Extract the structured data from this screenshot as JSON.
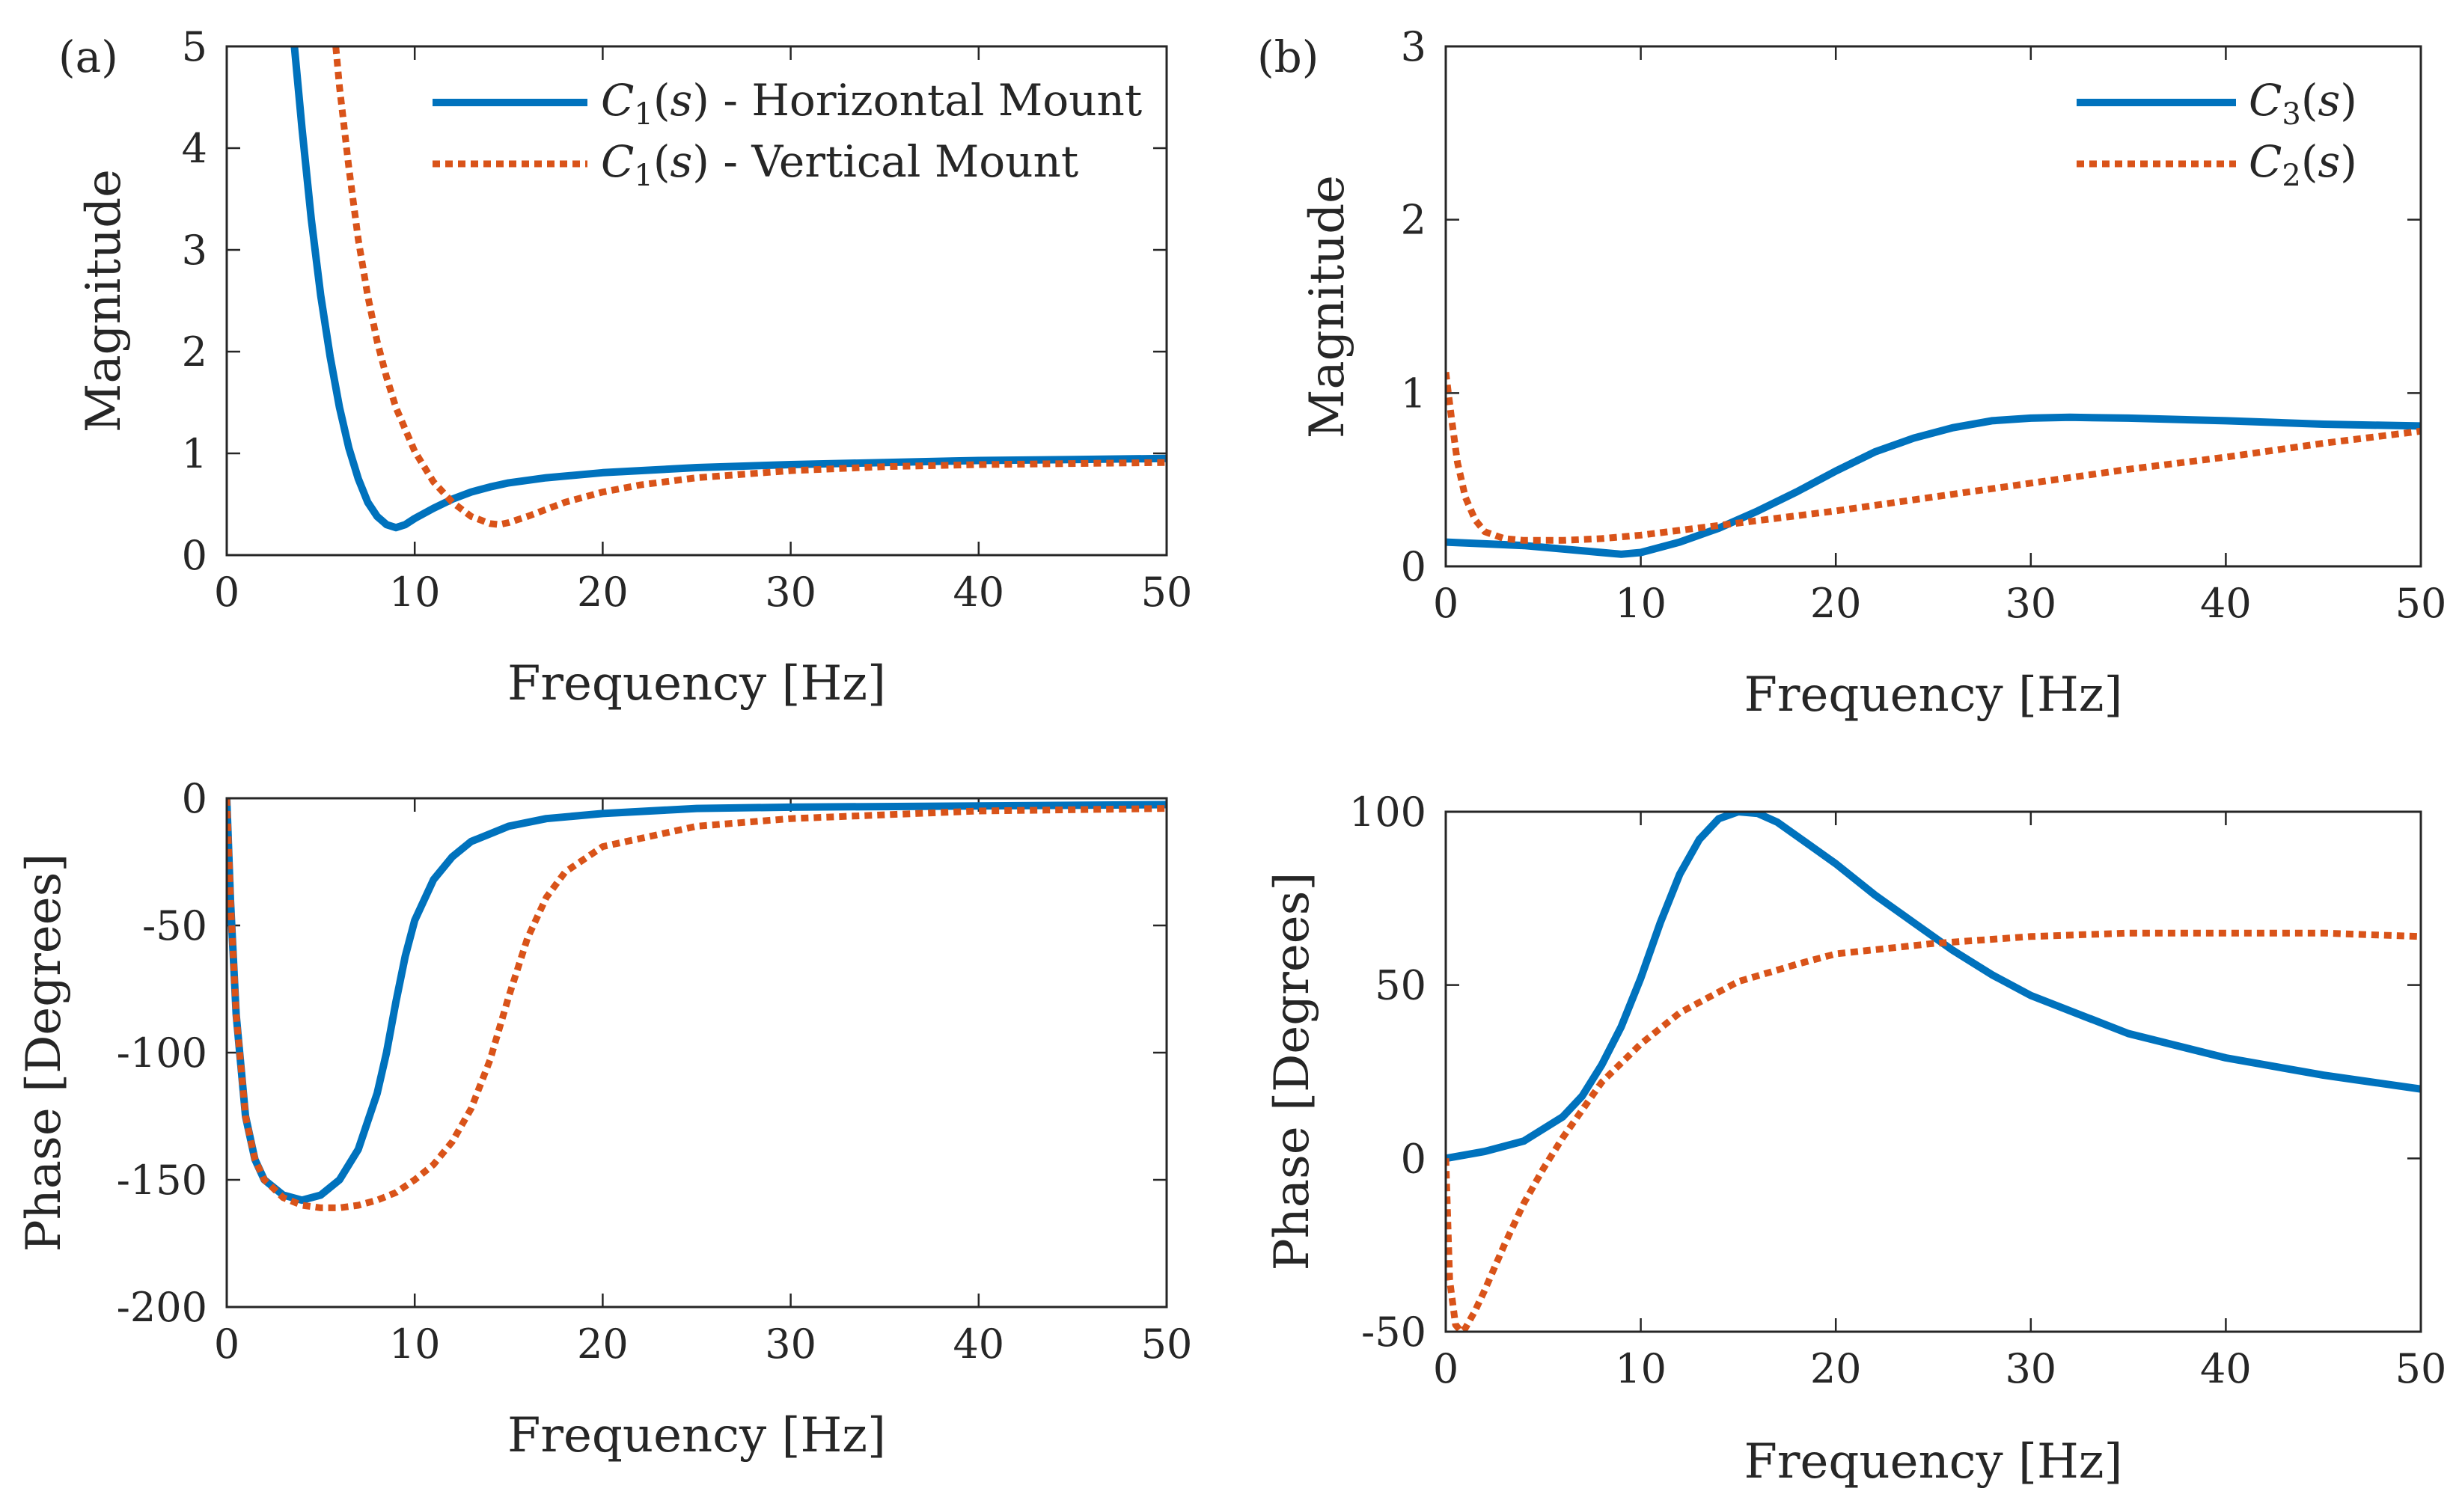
{
  "colors": {
    "blue": "#0072BD",
    "orange": "#D95319",
    "axis": "#262626"
  },
  "chart_data": [
    {
      "id": "a_mag",
      "type": "line",
      "panel_label": "(a)",
      "xlabel": "Frequency [Hz]",
      "ylabel": "Magnitude",
      "xlim": [
        0,
        50
      ],
      "ylim": [
        0,
        5
      ],
      "xticks": [
        0,
        10,
        20,
        30,
        40,
        50
      ],
      "yticks": [
        0,
        1,
        2,
        3,
        4,
        5
      ],
      "legend_position": "top-right",
      "series": [
        {
          "name": "C1(s) - Horizontal Mount",
          "legend": {
            "sym": "C",
            "sub": "1",
            "arg": "(s)",
            "rest": " - Horizontal Mount"
          },
          "color": "#0072BD",
          "style": "solid",
          "x": [
            3.6,
            4.0,
            4.5,
            5.0,
            5.5,
            6.0,
            6.5,
            7.0,
            7.5,
            8.0,
            8.5,
            9.0,
            9.5,
            10.0,
            11.0,
            12.0,
            13.0,
            14.0,
            15.0,
            17.0,
            20.0,
            25.0,
            30.0,
            35.0,
            40.0,
            45.0,
            50.0
          ],
          "y": [
            5.0,
            4.2,
            3.3,
            2.55,
            1.95,
            1.45,
            1.05,
            0.75,
            0.52,
            0.38,
            0.3,
            0.27,
            0.3,
            0.36,
            0.46,
            0.55,
            0.62,
            0.67,
            0.71,
            0.76,
            0.81,
            0.86,
            0.89,
            0.91,
            0.93,
            0.94,
            0.95
          ]
        },
        {
          "name": "C1(s) - Vertical Mount",
          "legend": {
            "sym": "C",
            "sub": "1",
            "arg": "(s)",
            "rest": " - Vertical Mount"
          },
          "color": "#D95319",
          "style": "dotted",
          "x": [
            5.8,
            6.0,
            6.5,
            7.0,
            7.5,
            8.0,
            8.5,
            9.0,
            10.0,
            11.0,
            12.0,
            13.0,
            14.0,
            14.5,
            15.0,
            16.0,
            17.0,
            18.0,
            20.0,
            22.0,
            25.0,
            30.0,
            35.0,
            40.0,
            45.0,
            50.0
          ],
          "y": [
            5.0,
            4.6,
            3.8,
            3.1,
            2.55,
            2.1,
            1.75,
            1.45,
            1.02,
            0.72,
            0.52,
            0.38,
            0.31,
            0.3,
            0.32,
            0.38,
            0.45,
            0.52,
            0.62,
            0.69,
            0.76,
            0.83,
            0.87,
            0.89,
            0.9,
            0.91
          ]
        }
      ]
    },
    {
      "id": "a_phase",
      "type": "line",
      "xlabel": "Frequency [Hz]",
      "ylabel": "Phase [Degrees]",
      "xlim": [
        0,
        50
      ],
      "ylim": [
        -200,
        0
      ],
      "xticks": [
        0,
        10,
        20,
        30,
        40,
        50
      ],
      "yticks": [
        0,
        -50,
        -100,
        -150,
        -200
      ],
      "series": [
        {
          "name": "C1(s) - Horizontal Mount",
          "color": "#0072BD",
          "style": "solid",
          "x": [
            0.0,
            0.2,
            0.5,
            1.0,
            1.5,
            2.0,
            3.0,
            4.0,
            5.0,
            6.0,
            7.0,
            8.0,
            8.5,
            9.0,
            9.5,
            10.0,
            11.0,
            12.0,
            13.0,
            14.0,
            15.0,
            17.0,
            20.0,
            25.0,
            30.0,
            40.0,
            50.0
          ],
          "y": [
            0,
            -40,
            -85,
            -125,
            -142,
            -150,
            -156,
            -158,
            -156,
            -150,
            -138,
            -116,
            -100,
            -80,
            -62,
            -48,
            -32,
            -23,
            -17,
            -14,
            -11,
            -8,
            -6,
            -4,
            -3.5,
            -3,
            -2.5
          ]
        },
        {
          "name": "C1(s) - Vertical Mount",
          "color": "#D95319",
          "style": "dotted",
          "x": [
            0.0,
            0.2,
            0.5,
            1.0,
            1.5,
            2.0,
            3.0,
            4.0,
            5.0,
            6.0,
            7.0,
            8.0,
            9.0,
            10.0,
            11.0,
            12.0,
            13.0,
            14.0,
            15.0,
            16.0,
            17.0,
            18.0,
            20.0,
            25.0,
            30.0,
            40.0,
            50.0
          ],
          "y": [
            0,
            -40,
            -85,
            -125,
            -142,
            -150,
            -157,
            -160,
            -161,
            -161,
            -160,
            -158,
            -155,
            -150,
            -144,
            -135,
            -122,
            -103,
            -78,
            -55,
            -39,
            -29,
            -19,
            -11,
            -8,
            -5,
            -4
          ]
        }
      ]
    },
    {
      "id": "b_mag",
      "type": "line",
      "panel_label": "(b)",
      "xlabel": "Frequency [Hz]",
      "ylabel": "Magnitude",
      "xlim": [
        0,
        50
      ],
      "ylim": [
        0,
        3
      ],
      "xticks": [
        0,
        10,
        20,
        30,
        40,
        50
      ],
      "yticks": [
        0,
        1,
        2,
        3
      ],
      "legend_position": "top-right",
      "series": [
        {
          "name": "C3(s)",
          "legend": {
            "sym": "C",
            "sub": "3",
            "arg": "(s)",
            "rest": ""
          },
          "color": "#0072BD",
          "style": "solid",
          "x": [
            0,
            2,
            4,
            6,
            8,
            9,
            10,
            12,
            14,
            16,
            18,
            20,
            22,
            24,
            26,
            28,
            30,
            32,
            35,
            40,
            45,
            50
          ],
          "y": [
            0.14,
            0.13,
            0.12,
            0.1,
            0.08,
            0.07,
            0.08,
            0.14,
            0.22,
            0.32,
            0.43,
            0.55,
            0.66,
            0.74,
            0.8,
            0.84,
            0.855,
            0.86,
            0.855,
            0.84,
            0.82,
            0.81
          ]
        },
        {
          "name": "C2(s)",
          "legend": {
            "sym": "C",
            "sub": "2",
            "arg": "(s)",
            "rest": ""
          },
          "color": "#D95319",
          "style": "dotted",
          "x": [
            0.0,
            0.3,
            0.6,
            1.0,
            1.5,
            2.0,
            3.0,
            4.0,
            5.0,
            6.0,
            8.0,
            10.0,
            15.0,
            20.0,
            25.0,
            30.0,
            35.0,
            40.0,
            45.0,
            50.0
          ],
          "y": [
            1.12,
            0.85,
            0.6,
            0.4,
            0.27,
            0.2,
            0.16,
            0.15,
            0.15,
            0.15,
            0.16,
            0.18,
            0.25,
            0.32,
            0.4,
            0.48,
            0.56,
            0.63,
            0.71,
            0.78
          ]
        }
      ]
    },
    {
      "id": "b_phase",
      "type": "line",
      "xlabel": "Frequency [Hz]",
      "ylabel": "Phase [Degrees]",
      "xlim": [
        0,
        50
      ],
      "ylim": [
        -50,
        100
      ],
      "xticks": [
        0,
        10,
        20,
        30,
        40,
        50
      ],
      "yticks": [
        100,
        50,
        0,
        -50
      ],
      "series": [
        {
          "name": "C3(s)",
          "color": "#0072BD",
          "style": "solid",
          "x": [
            0,
            2,
            4,
            6,
            7,
            8,
            9,
            10,
            11,
            12,
            13,
            14,
            15,
            16,
            17,
            18,
            20,
            22,
            24,
            26,
            28,
            30,
            35,
            40,
            45,
            50
          ],
          "y": [
            0,
            2,
            5,
            12,
            18,
            27,
            38,
            52,
            68,
            82,
            92,
            98,
            100,
            99.5,
            97,
            93,
            85,
            76,
            68,
            60,
            53,
            47,
            36,
            29,
            24,
            20
          ]
        },
        {
          "name": "C2(s)",
          "color": "#D95319",
          "style": "dotted",
          "x": [
            0.0,
            0.2,
            0.5,
            0.8,
            1.0,
            1.5,
            2.0,
            3.0,
            4.0,
            5.0,
            6.0,
            7.0,
            8.0,
            10.0,
            12.0,
            15.0,
            18.0,
            20.0,
            25.0,
            30.0,
            35.0,
            40.0,
            45.0,
            50.0
          ],
          "y": [
            0,
            -35,
            -48,
            -50,
            -49,
            -44,
            -38,
            -25,
            -13,
            -3,
            6,
            14,
            22,
            33,
            42,
            51,
            56,
            59,
            62,
            64,
            65,
            65,
            65,
            64
          ]
        }
      ]
    }
  ]
}
